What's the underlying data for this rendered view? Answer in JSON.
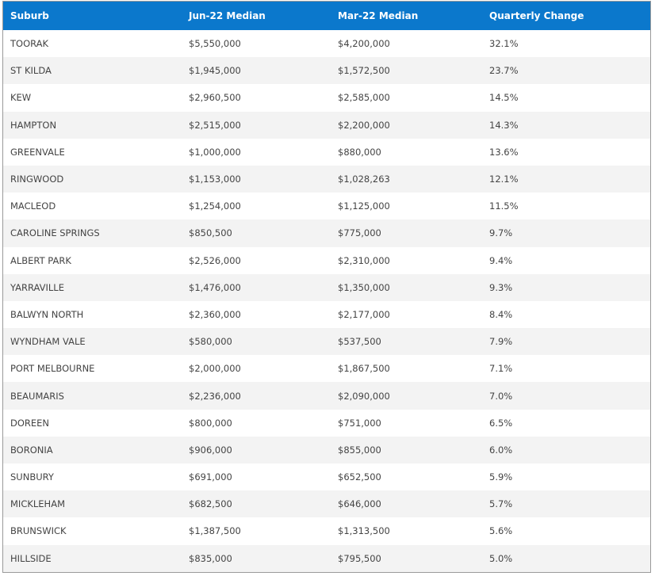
{
  "table": {
    "headers": [
      "Suburb",
      "Jun-22 Median",
      "Mar-22 Median",
      "Quarterly Change"
    ],
    "rows": [
      [
        "TOORAK",
        "$5,550,000",
        "$4,200,000",
        "32.1%"
      ],
      [
        "ST KILDA",
        "$1,945,000",
        "$1,572,500",
        "23.7%"
      ],
      [
        "KEW",
        "$2,960,500",
        "$2,585,000",
        "14.5%"
      ],
      [
        "HAMPTON",
        "$2,515,000",
        "$2,200,000",
        "14.3%"
      ],
      [
        "GREENVALE",
        "$1,000,000",
        "$880,000",
        "13.6%"
      ],
      [
        "RINGWOOD",
        "$1,153,000",
        "$1,028,263",
        "12.1%"
      ],
      [
        "MACLEOD",
        "$1,254,000",
        "$1,125,000",
        "11.5%"
      ],
      [
        "CAROLINE SPRINGS",
        "$850,500",
        "$775,000",
        "9.7%"
      ],
      [
        "ALBERT PARK",
        "$2,526,000",
        "$2,310,000",
        "9.4%"
      ],
      [
        "YARRAVILLE",
        "$1,476,000",
        "$1,350,000",
        "9.3%"
      ],
      [
        "BALWYN NORTH",
        "$2,360,000",
        "$2,177,000",
        "8.4%"
      ],
      [
        "WYNDHAM VALE",
        "$580,000",
        "$537,500",
        "7.9%"
      ],
      [
        "PORT MELBOURNE",
        "$2,000,000",
        "$1,867,500",
        "7.1%"
      ],
      [
        "BEAUMARIS",
        "$2,236,000",
        "$2,090,000",
        "7.0%"
      ],
      [
        "DOREEN",
        "$800,000",
        "$751,000",
        "6.5%"
      ],
      [
        "BORONIA",
        "$906,000",
        "$855,000",
        "6.0%"
      ],
      [
        "SUNBURY",
        "$691,000",
        "$652,500",
        "5.9%"
      ],
      [
        "MICKLEHAM",
        "$682,500",
        "$646,000",
        "5.7%"
      ],
      [
        "BRUNSWICK",
        "$1,387,500",
        "$1,313,500",
        "5.6%"
      ],
      [
        "HILLSIDE",
        "$835,000",
        "$795,500",
        "5.0%"
      ]
    ]
  },
  "colors": {
    "header_background": "#0b78cc",
    "header_text": "#ffffff",
    "row_alt_background": "#f3f3f3",
    "cell_text": "#444444"
  }
}
